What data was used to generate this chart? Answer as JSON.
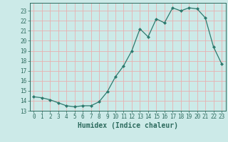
{
  "x": [
    0,
    1,
    2,
    3,
    4,
    5,
    6,
    7,
    8,
    9,
    10,
    11,
    12,
    13,
    14,
    15,
    16,
    17,
    18,
    19,
    20,
    21,
    22,
    23
  ],
  "y": [
    14.4,
    14.3,
    14.1,
    13.8,
    13.5,
    13.4,
    13.5,
    13.5,
    13.9,
    14.9,
    16.4,
    17.5,
    19.0,
    21.2,
    20.4,
    22.2,
    21.8,
    23.3,
    23.0,
    23.3,
    23.2,
    22.3,
    19.4,
    17.7
  ],
  "line_color": "#2d7a6e",
  "marker": "D",
  "marker_size": 2.0,
  "bg_color": "#cceae8",
  "grid_color": "#e8b0b0",
  "tick_color": "#2d6b5e",
  "xlabel": "Humidex (Indice chaleur)",
  "xlabel_fontsize": 7,
  "xlim": [
    -0.5,
    23.5
  ],
  "ylim": [
    13,
    23.8
  ],
  "yticks": [
    13,
    14,
    15,
    16,
    17,
    18,
    19,
    20,
    21,
    22,
    23
  ],
  "xticks": [
    0,
    1,
    2,
    3,
    4,
    5,
    6,
    7,
    8,
    9,
    10,
    11,
    12,
    13,
    14,
    15,
    16,
    17,
    18,
    19,
    20,
    21,
    22,
    23
  ],
  "tick_fontsize": 5.5
}
